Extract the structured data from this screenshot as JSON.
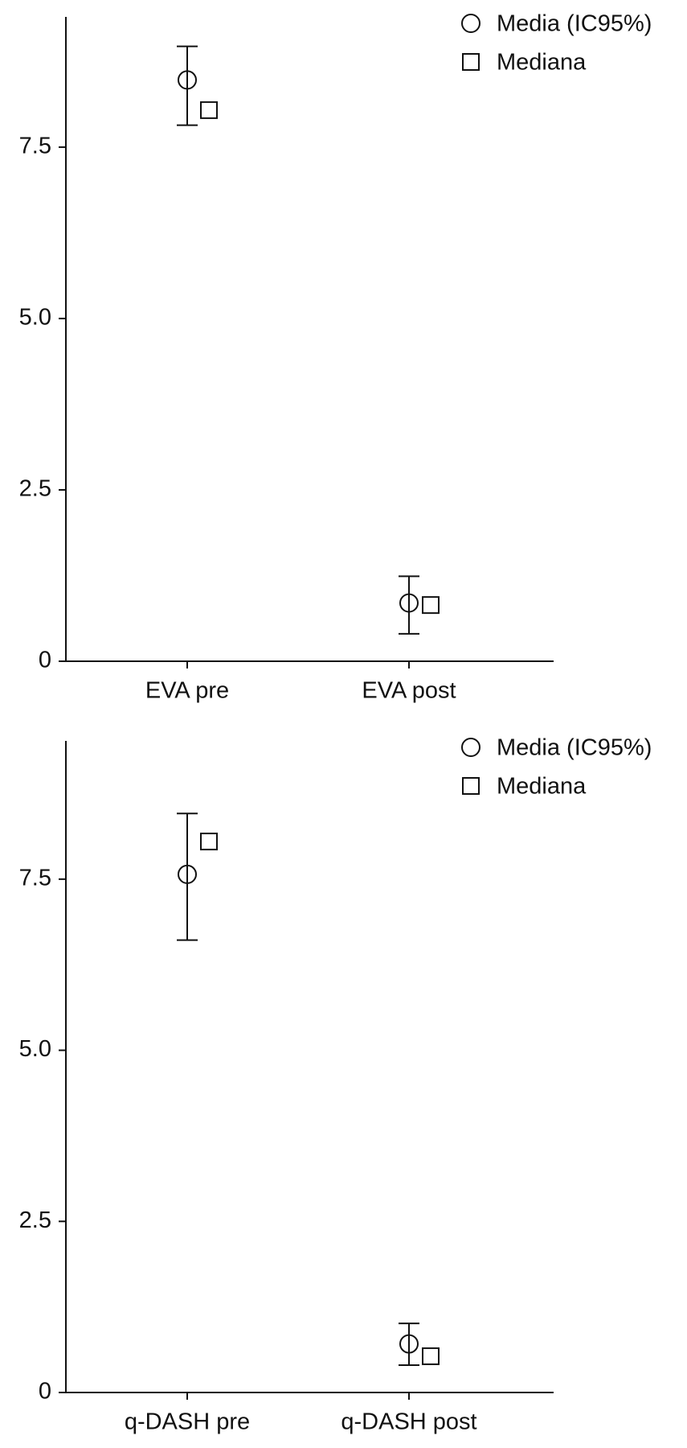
{
  "chart_data": [
    {
      "type": "errorbar",
      "categories": [
        "EVA pre",
        "EVA post"
      ],
      "series": [
        {
          "name": "Media (IC95%)",
          "marker": "circle",
          "values": [
            8.48,
            0.85
          ],
          "lower": [
            7.82,
            0.4
          ],
          "upper": [
            8.97,
            1.24
          ]
        },
        {
          "name": "Mediana",
          "marker": "square",
          "values": [
            8.04,
            0.82
          ]
        }
      ],
      "ylim": [
        0,
        9.4
      ],
      "yticks": [
        0,
        2.5,
        {
          "value": 5,
          "label": "5.0"
        },
        7.5
      ],
      "legend": "upper right"
    },
    {
      "type": "errorbar",
      "categories": [
        "q-DASH pre",
        "q-DASH post"
      ],
      "series": [
        {
          "name": "Media (IC95%)",
          "marker": "circle",
          "values": [
            7.57,
            0.71
          ],
          "lower": [
            6.61,
            0.4
          ],
          "upper": [
            8.46,
            1.01
          ]
        },
        {
          "name": "Mediana",
          "marker": "square",
          "values": [
            8.05,
            0.53
          ]
        }
      ],
      "ylim": [
        0,
        9.52
      ],
      "yticks": [
        0,
        2.5,
        {
          "value": 5,
          "label": "5.0"
        },
        7.5
      ],
      "legend": "upper right"
    }
  ]
}
